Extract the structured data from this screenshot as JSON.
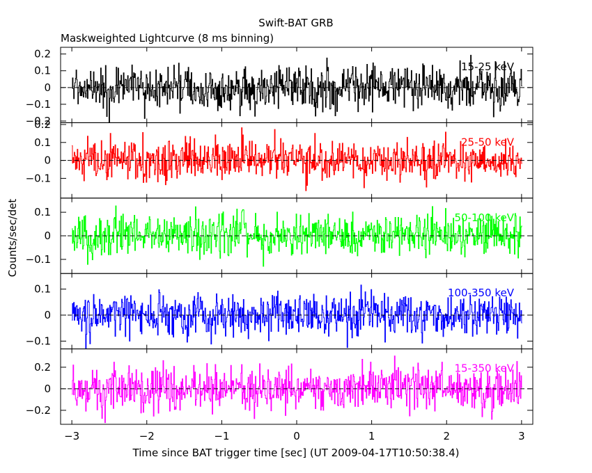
{
  "chart_data": {
    "type": "line",
    "title": "Swift-BAT GRB",
    "subtitle": "Maskweighted Lightcurve (8 ms binning)",
    "xlabel": "Time since BAT trigger time [sec] (UT 2009-04-17T10:50:38.4)",
    "ylabel": "Counts/sec/det",
    "xlim": [
      -3.15,
      3.15
    ],
    "xticks": [
      -3,
      -2,
      -1,
      0,
      1,
      2,
      3
    ],
    "xtick_labels": [
      "−3",
      "−2",
      "−1",
      "0",
      "1",
      "2",
      "3"
    ],
    "binning_sec": 0.008,
    "grid": false,
    "legend": "inline labels at top-right of each panel",
    "panels": [
      {
        "name": "15-25 keV",
        "color": "#000000",
        "ylim": [
          -0.21,
          0.24
        ],
        "yticks": [
          -0.2,
          -0.1,
          0,
          0.1,
          0.2
        ],
        "ytick_labels": [
          "−0.2",
          "−0.1",
          "0",
          "0.1",
          "0.2"
        ],
        "noise_sigma": 0.065
      },
      {
        "name": "25-50 keV",
        "color": "#ff0000",
        "ylim": [
          -0.21,
          0.21
        ],
        "yticks": [
          -0.1,
          0,
          0.1,
          0.2
        ],
        "ytick_labels": [
          "−0.1",
          "0",
          "0.1",
          "0.2"
        ],
        "noise_sigma": 0.055
      },
      {
        "name": "50-100 keV",
        "color": "#00ff00",
        "ylim": [
          -0.16,
          0.16
        ],
        "yticks": [
          -0.1,
          0,
          0.1
        ],
        "ytick_labels": [
          "−0.1",
          "0",
          "0.1"
        ],
        "noise_sigma": 0.045
      },
      {
        "name": "100-350 keV",
        "color": "#0000ff",
        "ylim": [
          -0.13,
          0.16
        ],
        "yticks": [
          -0.1,
          0,
          0.1
        ],
        "ytick_labels": [
          "−0.1",
          "0",
          "0.1"
        ],
        "noise_sigma": 0.04
      },
      {
        "name": "15-350 keV",
        "color": "#ff00ff",
        "ylim": [
          -0.33,
          0.37
        ],
        "yticks": [
          -0.2,
          0,
          0.2
        ],
        "ytick_labels": [
          "−0.2",
          "0",
          "0.2"
        ],
        "noise_sigma": 0.1
      }
    ]
  }
}
